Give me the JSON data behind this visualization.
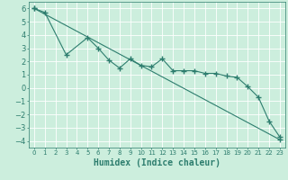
{
  "xlabel": "Humidex (Indice chaleur)",
  "bg_color": "#cceedd",
  "line_color": "#2d7d6e",
  "grid_color": "#ffffff",
  "xlim": [
    -0.5,
    23.5
  ],
  "ylim": [
    -4.5,
    6.5
  ],
  "xticks": [
    0,
    1,
    2,
    3,
    4,
    5,
    6,
    7,
    8,
    9,
    10,
    11,
    12,
    13,
    14,
    15,
    16,
    17,
    18,
    19,
    20,
    21,
    22,
    23
  ],
  "yticks": [
    -4,
    -3,
    -2,
    -1,
    0,
    1,
    2,
    3,
    4,
    5,
    6
  ],
  "line1_x": [
    0,
    1,
    3,
    5,
    6,
    7,
    8,
    9,
    10,
    11,
    12,
    13,
    14,
    15,
    16,
    17,
    18,
    19,
    20,
    21,
    22,
    23
  ],
  "line1_y": [
    6.0,
    5.7,
    2.5,
    3.8,
    3.0,
    2.1,
    1.5,
    2.2,
    1.7,
    1.6,
    2.2,
    1.3,
    1.3,
    1.3,
    1.1,
    1.1,
    0.9,
    0.8,
    0.1,
    -0.7,
    -2.5,
    -3.7
  ],
  "line2_x": [
    0,
    23
  ],
  "line2_y": [
    6.0,
    -3.9
  ],
  "marker": "+",
  "marker_size": 4,
  "linewidth": 0.8,
  "tick_fontsize": 5,
  "xlabel_fontsize": 7
}
